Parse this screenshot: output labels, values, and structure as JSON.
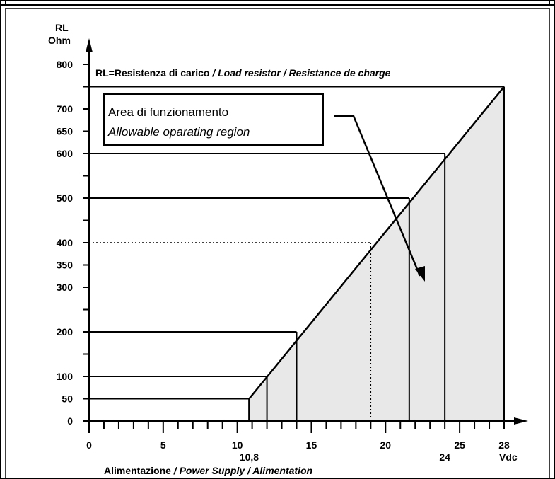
{
  "chart_data": {
    "type": "area",
    "title_regular": "RL=Resistenza di carico ",
    "title_italic": "/ Load resistor / Resistance de charge",
    "ylabel_line1": "RL",
    "ylabel_line2": "Ohm",
    "xlabel_regular": "Alimentazione ",
    "xlabel_italic": "/ Power Supply / Alimentation",
    "xunit": "Vdc",
    "region_label_line1": "Area di funzionamento",
    "region_label_line2": "Allowable oparating region",
    "xlim": [
      0,
      28
    ],
    "ylim": [
      0,
      800
    ],
    "x_ticks": [
      {
        "value": 0,
        "label": "0"
      },
      {
        "value": 5,
        "label": "5"
      },
      {
        "value": 10,
        "label": "10"
      },
      {
        "value": 15,
        "label": "15"
      },
      {
        "value": 20,
        "label": "20"
      },
      {
        "value": 25,
        "label": "25"
      },
      {
        "value": 28,
        "label": "28"
      }
    ],
    "x_ticks_low": [
      {
        "value": 10.8,
        "label": "10,8"
      },
      {
        "value": 24,
        "label": "24"
      }
    ],
    "y_ticks": [
      {
        "value": 0,
        "label": "0"
      },
      {
        "value": 50,
        "label": "50"
      },
      {
        "value": 100,
        "label": "100"
      },
      {
        "value": 200,
        "label": "200"
      },
      {
        "value": 300,
        "label": "300"
      },
      {
        "value": 350,
        "label": "350"
      },
      {
        "value": 400,
        "label": "400"
      },
      {
        "value": 500,
        "label": "500"
      },
      {
        "value": 600,
        "label": "600"
      },
      {
        "value": 650,
        "label": "650"
      },
      {
        "value": 700,
        "label": "700"
      },
      {
        "value": 800,
        "label": "800"
      }
    ],
    "boundary": {
      "x": [
        10.8,
        10.8,
        28
      ],
      "y": [
        0,
        50,
        750
      ]
    },
    "reference_points": [
      {
        "x": 10.8,
        "y": 50,
        "style": "solid"
      },
      {
        "x": 12,
        "y": 100,
        "style": "solid"
      },
      {
        "x": 14,
        "y": 200,
        "style": "solid"
      },
      {
        "x": 19,
        "y": 400,
        "style": "dotted"
      },
      {
        "x": 21.6,
        "y": 500,
        "style": "solid"
      },
      {
        "x": 24,
        "y": 600,
        "style": "solid"
      },
      {
        "x": 28,
        "y": 750,
        "style": "solid"
      }
    ],
    "fill_color": "#e8e8e8",
    "line_color": "#000000",
    "grid": false
  }
}
